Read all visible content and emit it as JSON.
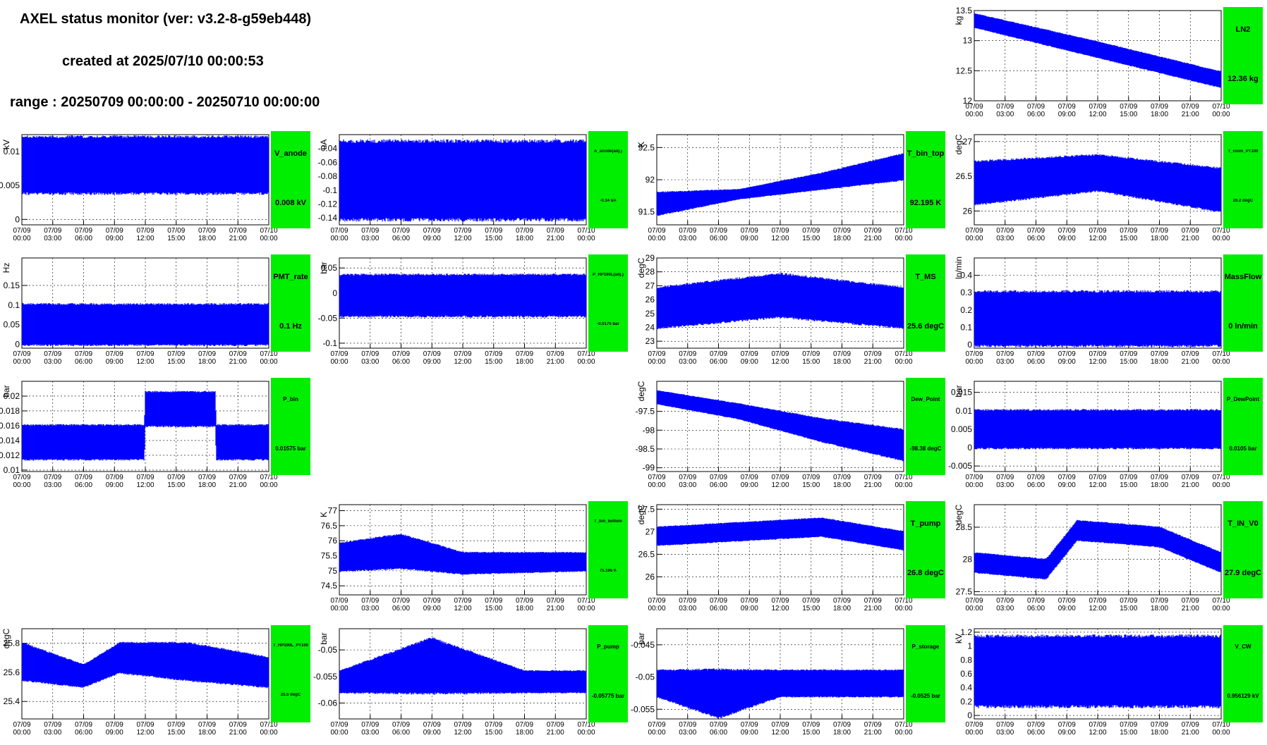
{
  "header": {
    "title": "AXEL status monitor (ver: v3.2-8-g59eb448)",
    "created": "created at 2025/07/10 00:00:53",
    "range": "range : 20250709 00:00:00 - 20250710 00:00:00"
  },
  "time_ticks": [
    [
      "07/09",
      "00:00"
    ],
    [
      "07/09",
      "03:00"
    ],
    [
      "07/09",
      "06:00"
    ],
    [
      "07/09",
      "09:00"
    ],
    [
      "07/09",
      "12:00"
    ],
    [
      "07/09",
      "15:00"
    ],
    [
      "07/09",
      "18:00"
    ],
    [
      "07/09",
      "21:00"
    ],
    [
      "07/10",
      "00:00"
    ]
  ],
  "colors": {
    "trace": "#0000ff",
    "status": "#00ee00",
    "grid": "#000000"
  },
  "chart_data": [
    {
      "id": "LN2",
      "row": 0,
      "col": 3,
      "type": "line",
      "title": "LN2",
      "ylabel": "kg",
      "value": "12.36 kg",
      "ylim": [
        12,
        13.5
      ],
      "yticks": [
        "12",
        "12.5",
        "13",
        "13.5"
      ],
      "tick_labels": [
        "12",
        "12.5",
        "13",
        "13.5"
      ],
      "band": [
        [
          0,
          13.22,
          13.45
        ],
        [
          12,
          12.72,
          12.98
        ],
        [
          24,
          12.22,
          12.48
        ]
      ]
    },
    {
      "id": "V_anode",
      "row": 1,
      "col": 0,
      "type": "line",
      "title": "V_anode",
      "ylabel": "kV",
      "value": "0.008 kV",
      "ylim": [
        -0.0008,
        0.0125
      ],
      "yticks": [
        0,
        0.005,
        0.01
      ],
      "tick_labels": [
        "0",
        "0.005",
        "0.01"
      ],
      "band": [
        [
          0,
          0.004,
          0.012
        ],
        [
          24,
          0.004,
          0.012
        ]
      ]
    },
    {
      "id": "A_anode",
      "row": 1,
      "col": 1,
      "type": "line",
      "title": "A_anode(adj.)",
      "ylabel": "uA",
      "value": "-0.14 uA",
      "small": "tiny",
      "ylim": [
        -0.15,
        -0.02
      ],
      "yticks": [
        -0.14,
        -0.12,
        -0.1,
        -0.08,
        -0.06,
        -0.04
      ],
      "tick_labels": [
        "-0.14",
        "-0.12",
        "-0.1",
        "-0.08",
        "-0.06",
        "-0.04"
      ],
      "band": [
        [
          0,
          -0.14,
          -0.032
        ],
        [
          24,
          -0.14,
          -0.032
        ]
      ]
    },
    {
      "id": "T_bin_top",
      "row": 1,
      "col": 2,
      "type": "line",
      "title": "T_bin_top",
      "ylabel": "K",
      "value": "92.195 K",
      "ylim": [
        91.3,
        92.7
      ],
      "yticks": [
        91.5,
        92,
        92.5
      ],
      "tick_labels": [
        "91.5",
        "92",
        "92.5"
      ],
      "band": [
        [
          0,
          91.45,
          91.8
        ],
        [
          8,
          91.7,
          91.85
        ],
        [
          16,
          91.85,
          92.1
        ],
        [
          24,
          92.0,
          92.4
        ]
      ]
    },
    {
      "id": "T_room",
      "row": 1,
      "col": 3,
      "type": "line",
      "title": "T_room_PT100",
      "ylabel": "degC",
      "value": "26.2 degC",
      "small": "tiny",
      "ylim": [
        25.8,
        27.1
      ],
      "yticks": [
        26,
        26.5,
        27
      ],
      "tick_labels": [
        "26",
        "26.5",
        "27"
      ],
      "band": [
        [
          0,
          26.1,
          26.7
        ],
        [
          12,
          26.3,
          26.8
        ],
        [
          24,
          26.0,
          26.6
        ]
      ]
    },
    {
      "id": "PMT_rate",
      "row": 2,
      "col": 0,
      "type": "line",
      "title": "PMT_rate",
      "ylabel": "Hz",
      "value": "0.1 Hz",
      "ylim": [
        -0.01,
        0.22
      ],
      "yticks": [
        0,
        0.05,
        0.1,
        0.15
      ],
      "tick_labels": [
        "0",
        "0.05",
        "0.1",
        "0.15"
      ],
      "band": [
        [
          0,
          0,
          0.1
        ],
        [
          24,
          0,
          0.1
        ]
      ]
    },
    {
      "id": "P_HP190L",
      "row": 2,
      "col": 1,
      "type": "line",
      "title": "P_HP190L(adj.)",
      "ylabel": "bar",
      "value": "-0.0175 bar",
      "small": "tiny",
      "ylim": [
        -0.11,
        0.07
      ],
      "yticks": [
        -0.1,
        -0.05,
        0,
        0.05
      ],
      "tick_labels": [
        "-0.1",
        "-0.05",
        "0",
        "0.05"
      ],
      "band": [
        [
          0,
          -0.045,
          0.035
        ],
        [
          24,
          -0.045,
          0.035
        ]
      ]
    },
    {
      "id": "T_MS",
      "row": 2,
      "col": 2,
      "type": "line",
      "title": "T_MS",
      "ylabel": "degC",
      "value": "25.6 degC",
      "ylim": [
        22.5,
        29
      ],
      "yticks": [
        23,
        24,
        25,
        26,
        27,
        28,
        29
      ],
      "tick_labels": [
        "23",
        "24",
        "25",
        "26",
        "27",
        "28",
        "29"
      ],
      "band": [
        [
          0,
          24.0,
          26.8
        ],
        [
          12,
          24.8,
          27.8
        ],
        [
          24,
          24.0,
          26.8
        ]
      ]
    },
    {
      "id": "MassFlow",
      "row": 2,
      "col": 3,
      "type": "line",
      "title": "MassFlow",
      "ylabel": "ln/min",
      "value": "0 ln/min",
      "ylim": [
        -0.02,
        0.5
      ],
      "yticks": [
        0,
        0.1,
        0.2,
        0.3,
        0.4
      ],
      "tick_labels": [
        "0",
        "0.1",
        "0.2",
        "0.3",
        "0.4"
      ],
      "band": [
        [
          0,
          0,
          0.3
        ],
        [
          24,
          0,
          0.3
        ]
      ]
    },
    {
      "id": "P_bin",
      "row": 3,
      "col": 0,
      "type": "line",
      "title": "P_bin",
      "ylabel": "bar",
      "value": "0.01575 bar",
      "small": "small",
      "ylim": [
        0.0098,
        0.022
      ],
      "yticks": [
        0.01,
        0.012,
        0.014,
        0.016,
        0.018,
        0.02
      ],
      "tick_labels": [
        "0.01",
        "0.012",
        "0.014",
        "0.016",
        "0.018",
        "0.02"
      ],
      "band": [
        [
          0,
          0.0115,
          0.016
        ],
        [
          11.9,
          0.0115,
          0.016
        ],
        [
          12,
          0.016,
          0.0205
        ],
        [
          18.8,
          0.016,
          0.0205
        ],
        [
          18.9,
          0.0115,
          0.016
        ],
        [
          24,
          0.0115,
          0.016
        ]
      ]
    },
    {
      "id": "Dew_Point",
      "row": 3,
      "col": 2,
      "type": "line",
      "title": "Dew_Point",
      "ylabel": "degC",
      "value": "-98.38 degC",
      "small": "small",
      "ylim": [
        -99.1,
        -96.7
      ],
      "yticks": [
        -99,
        -98.5,
        -98,
        -97.5
      ],
      "tick_labels": [
        "-99",
        "-98.5",
        "-98",
        "-97.5"
      ],
      "band": [
        [
          0,
          -97.3,
          -96.95
        ],
        [
          8,
          -97.7,
          -97.3
        ],
        [
          16,
          -98.3,
          -97.7
        ],
        [
          24,
          -98.8,
          -98.0
        ]
      ]
    },
    {
      "id": "P_DewPoint",
      "row": 3,
      "col": 3,
      "type": "line",
      "title": "P_DewPoint",
      "ylabel": "bar",
      "value": "0.0105 bar",
      "small": "small",
      "ylim": [
        -0.0065,
        0.018
      ],
      "yticks": [
        -0.005,
        0,
        0.005,
        0.01,
        0.015
      ],
      "tick_labels": [
        "-0.005",
        "0",
        "0.005",
        "0.01",
        "0.015"
      ],
      "band": [
        [
          0,
          0,
          0.01
        ],
        [
          24,
          0,
          0.01
        ]
      ]
    },
    {
      "id": "T_bin_bottom",
      "row": 4,
      "col": 1,
      "type": "line",
      "title": "T_bin_bottom",
      "ylabel": "K",
      "value": "75.195 K",
      "small": "tiny",
      "ylim": [
        74.2,
        77.2
      ],
      "yticks": [
        74.5,
        75,
        75.5,
        76,
        76.5,
        77
      ],
      "tick_labels": [
        "74.5",
        "75",
        "75.5",
        "76",
        "76.5",
        "77"
      ],
      "band": [
        [
          0,
          75.0,
          75.9
        ],
        [
          6,
          75.1,
          76.2
        ],
        [
          12,
          74.9,
          75.6
        ],
        [
          24,
          75.0,
          75.6
        ]
      ]
    },
    {
      "id": "T_pump",
      "row": 4,
      "col": 2,
      "type": "line",
      "title": "T_pump",
      "ylabel": "degC",
      "value": "26.8 degC",
      "ylim": [
        25.6,
        27.6
      ],
      "yticks": [
        26,
        26.5,
        27,
        27.5
      ],
      "tick_labels": [
        "26",
        "26.5",
        "27",
        "27.5"
      ],
      "band": [
        [
          0,
          26.7,
          27.1
        ],
        [
          8,
          26.8,
          27.2
        ],
        [
          16,
          26.9,
          27.3
        ],
        [
          24,
          26.6,
          27.0
        ]
      ]
    },
    {
      "id": "T_IN_V0",
      "row": 4,
      "col": 3,
      "type": "line",
      "title": "T_IN_V0",
      "ylabel": "degC",
      "value": "27.9 degC",
      "ylim": [
        27.45,
        28.85
      ],
      "yticks": [
        27.5,
        28,
        28.5
      ],
      "tick_labels": [
        "27.5",
        "28",
        "28.5"
      ],
      "band": [
        [
          0,
          27.8,
          28.1
        ],
        [
          7,
          27.7,
          28.0
        ],
        [
          10,
          28.3,
          28.6
        ],
        [
          18,
          28.2,
          28.5
        ],
        [
          24,
          27.8,
          28.1
        ]
      ]
    },
    {
      "id": "T_HP190L",
      "row": 5,
      "col": 0,
      "type": "line",
      "title": "T_HP190L_PT100",
      "ylabel": "degC",
      "value": "25.5 degC",
      "small": "tiny",
      "ylim": [
        25.28,
        25.9
      ],
      "yticks": [
        25.4,
        25.6,
        25.8
      ],
      "tick_labels": [
        "25.4",
        "25.6",
        "25.8"
      ],
      "band": [
        [
          0,
          25.55,
          25.8
        ],
        [
          6,
          25.5,
          25.65
        ],
        [
          9.5,
          25.6,
          25.8
        ],
        [
          16,
          25.55,
          25.8
        ],
        [
          24,
          25.5,
          25.7
        ]
      ]
    },
    {
      "id": "P_pump",
      "row": 5,
      "col": 1,
      "type": "line",
      "title": "P_pump",
      "ylabel": "bar",
      "value": "-0.05775 bar",
      "small": "small",
      "ylim": [
        -0.063,
        -0.046
      ],
      "yticks": [
        -0.06,
        -0.055,
        -0.05
      ],
      "tick_labels": [
        "-0.06",
        "-0.055",
        "-0.05"
      ],
      "band": [
        [
          0,
          -0.058,
          -0.054
        ],
        [
          9,
          -0.058,
          -0.048
        ],
        [
          18,
          -0.058,
          -0.054
        ],
        [
          24,
          -0.058,
          -0.054
        ]
      ]
    },
    {
      "id": "P_storage",
      "row": 5,
      "col": 2,
      "type": "line",
      "title": "P_storage",
      "ylabel": "bar",
      "value": "-0.0525 bar",
      "small": "small",
      "ylim": [
        -0.0565,
        -0.0425
      ],
      "yticks": [
        -0.055,
        -0.05,
        -0.045
      ],
      "tick_labels": [
        "-0.055",
        "-0.05",
        "-0.045"
      ],
      "band": [
        [
          0,
          -0.053,
          -0.049
        ],
        [
          6,
          -0.0562,
          -0.049
        ],
        [
          12,
          -0.053,
          -0.049
        ],
        [
          24,
          -0.053,
          -0.049
        ]
      ]
    },
    {
      "id": "V_CW",
      "row": 5,
      "col": 3,
      "type": "line",
      "title": "V_CW",
      "ylabel": "kV",
      "value": "0.956129 kV",
      "small": "small",
      "ylim": [
        -0.05,
        1.25
      ],
      "yticks": [
        0,
        0.2,
        0.4,
        0.6,
        0.8,
        1,
        1.2
      ],
      "tick_labels": [
        "0",
        "0.2",
        "0.4",
        "0.6",
        "0.8",
        "1",
        "1.2"
      ],
      "band": [
        [
          0,
          0.15,
          1.12
        ],
        [
          24,
          0.15,
          1.12
        ]
      ]
    }
  ]
}
